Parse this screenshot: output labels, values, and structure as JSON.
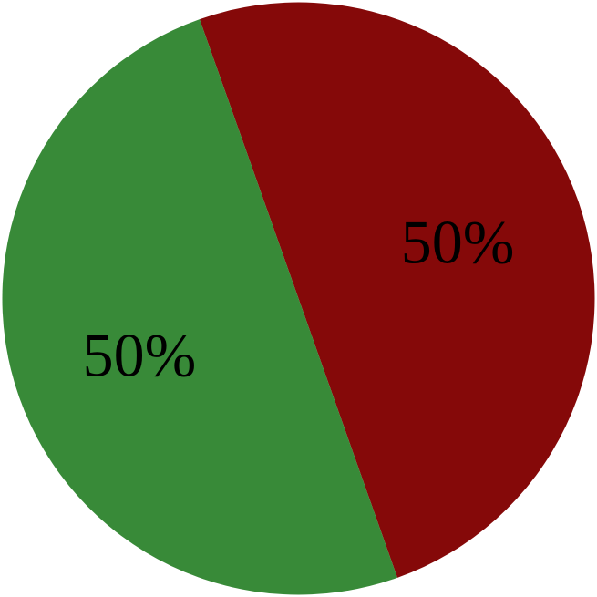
{
  "chart_data": {
    "type": "pie",
    "categories": [
      "",
      ""
    ],
    "values": [
      50,
      50
    ],
    "labels": [
      "50%",
      "50%"
    ],
    "colors": [
      "#850909",
      "#388a38"
    ],
    "start_angle_deg": -19.5,
    "direction": "clockwise",
    "legend": "none"
  }
}
